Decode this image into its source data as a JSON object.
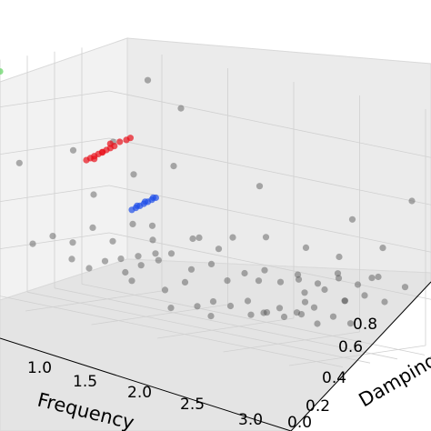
{
  "chart_data": {
    "type": "scatter3d",
    "xlabel": "Frequency",
    "ylabel": "Damping",
    "x_ticks": [
      "1.0",
      "1.5",
      "2.0",
      "2.5",
      "3.0"
    ],
    "y_ticks": [
      "0.0",
      "0.2",
      "0.4",
      "0.6",
      "0.8"
    ],
    "grid": true,
    "colors": {
      "gray": "#4d4d4d",
      "red": "#e8101a",
      "blue": "#1f4fe8",
      "green": "#5fd35f"
    },
    "series": [
      {
        "color": "gray",
        "points": [
          [
            1.3,
            0.05,
            0.25
          ],
          [
            1.4,
            0.08,
            0.22
          ],
          [
            1.5,
            0.1,
            0.26
          ],
          [
            1.6,
            0.12,
            0.28
          ],
          [
            1.7,
            0.15,
            0.3
          ],
          [
            1.8,
            0.18,
            0.32
          ],
          [
            1.9,
            0.2,
            0.33
          ],
          [
            1.55,
            0.2,
            0.21
          ],
          [
            1.65,
            0.22,
            0.25
          ],
          [
            1.75,
            0.25,
            0.28
          ],
          [
            2.0,
            0.25,
            0.27
          ],
          [
            2.1,
            0.3,
            0.3
          ],
          [
            2.2,
            0.32,
            0.24
          ],
          [
            2.3,
            0.35,
            0.28
          ],
          [
            2.4,
            0.4,
            0.3
          ],
          [
            2.5,
            0.42,
            0.26
          ],
          [
            2.6,
            0.45,
            0.3
          ],
          [
            2.7,
            0.5,
            0.27
          ],
          [
            2.8,
            0.55,
            0.32
          ],
          [
            2.9,
            0.6,
            0.28
          ],
          [
            2.2,
            0.1,
            0.15
          ],
          [
            2.3,
            0.12,
            0.18
          ],
          [
            2.4,
            0.15,
            0.17
          ],
          [
            2.5,
            0.18,
            0.2
          ],
          [
            2.6,
            0.2,
            0.16
          ],
          [
            2.7,
            0.22,
            0.19
          ],
          [
            2.8,
            0.25,
            0.18
          ],
          [
            2.9,
            0.28,
            0.21
          ],
          [
            2.4,
            0.3,
            0.12
          ],
          [
            2.5,
            0.32,
            0.14
          ],
          [
            2.6,
            0.35,
            0.13
          ],
          [
            2.7,
            0.38,
            0.15
          ],
          [
            2.8,
            0.4,
            0.12
          ],
          [
            2.9,
            0.42,
            0.16
          ],
          [
            3.0,
            0.45,
            0.14
          ],
          [
            2.6,
            0.5,
            0.22
          ],
          [
            2.7,
            0.55,
            0.24
          ],
          [
            2.8,
            0.6,
            0.2
          ],
          [
            2.9,
            0.65,
            0.23
          ],
          [
            3.0,
            0.7,
            0.21
          ],
          [
            2.9,
            0.75,
            0.3
          ],
          [
            2.8,
            0.8,
            0.28
          ],
          [
            3.0,
            0.85,
            0.26
          ],
          [
            2.7,
            0.7,
            0.18
          ],
          [
            2.5,
            0.6,
            0.16
          ],
          [
            1.2,
            0.3,
            0.35
          ],
          [
            1.4,
            0.4,
            0.38
          ],
          [
            1.6,
            0.35,
            0.4
          ],
          [
            1.8,
            0.5,
            0.36
          ],
          [
            2.0,
            0.45,
            0.34
          ],
          [
            1.0,
            0.2,
            0.3
          ],
          [
            1.1,
            0.25,
            0.28
          ],
          [
            0.9,
            0.15,
            0.26
          ],
          [
            1.3,
            0.35,
            0.3
          ],
          [
            1.5,
            0.45,
            0.32
          ],
          [
            1.7,
            0.55,
            0.34
          ],
          [
            1.9,
            0.65,
            0.36
          ],
          [
            2.1,
            0.7,
            0.38
          ],
          [
            2.3,
            0.8,
            0.35
          ],
          [
            2.5,
            0.85,
            0.33
          ],
          [
            1.2,
            0.6,
            0.55
          ],
          [
            1.4,
            0.7,
            0.6
          ],
          [
            2.0,
            0.75,
            0.58
          ],
          [
            2.6,
            0.85,
            0.5
          ],
          [
            1.0,
            0.5,
            0.45
          ],
          [
            1.6,
            0.2,
            0.18
          ],
          [
            1.8,
            0.25,
            0.16
          ],
          [
            2.0,
            0.1,
            0.12
          ],
          [
            2.2,
            0.2,
            0.1
          ],
          [
            1.9,
            0.3,
            0.2
          ],
          [
            3.0,
            0.9,
            0.62
          ],
          [
            2.8,
            0.88,
            0.4
          ],
          [
            1.1,
            0.8,
            0.92
          ],
          [
            1.3,
            0.85,
            0.82
          ],
          [
            0.85,
            0.1,
            0.6
          ],
          [
            1.0,
            0.35,
            0.65
          ],
          [
            1.2,
            0.45,
            0.7
          ],
          [
            2.2,
            0.55,
            0.22
          ],
          [
            2.4,
            0.65,
            0.24
          ],
          [
            2.6,
            0.75,
            0.26
          ]
        ]
      },
      {
        "color": "red",
        "points": [
          [
            1.1,
            0.35,
            0.62
          ],
          [
            1.12,
            0.36,
            0.63
          ],
          [
            1.14,
            0.37,
            0.64
          ],
          [
            1.16,
            0.38,
            0.65
          ],
          [
            1.18,
            0.39,
            0.66
          ],
          [
            1.2,
            0.4,
            0.67
          ],
          [
            1.22,
            0.41,
            0.68
          ],
          [
            1.24,
            0.42,
            0.69
          ],
          [
            1.15,
            0.36,
            0.63
          ],
          [
            1.19,
            0.38,
            0.66
          ],
          [
            1.3,
            0.45,
            0.72
          ],
          [
            1.32,
            0.46,
            0.73
          ],
          [
            1.23,
            0.4,
            0.7
          ],
          [
            1.27,
            0.43,
            0.71
          ]
        ]
      },
      {
        "color": "blue",
        "points": [
          [
            1.6,
            0.2,
            0.48
          ],
          [
            1.62,
            0.21,
            0.49
          ],
          [
            1.64,
            0.22,
            0.5
          ],
          [
            1.66,
            0.23,
            0.51
          ],
          [
            1.68,
            0.24,
            0.52
          ],
          [
            1.7,
            0.25,
            0.53
          ],
          [
            1.72,
            0.26,
            0.54
          ],
          [
            1.63,
            0.21,
            0.5
          ],
          [
            1.67,
            0.23,
            0.52
          ],
          [
            1.71,
            0.25,
            0.54
          ]
        ]
      },
      {
        "color": "green",
        "points": [
          [
            0.6,
            0.2,
            0.95
          ]
        ]
      }
    ]
  }
}
